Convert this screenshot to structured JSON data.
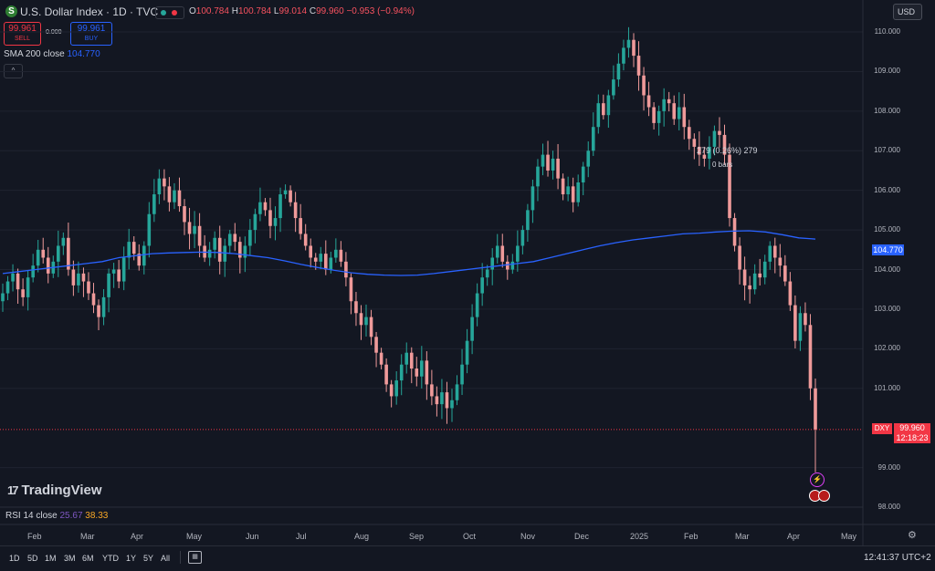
{
  "header": {
    "symbol_icon": "S",
    "title": "U.S. Dollar Index · 1D · TVC",
    "ohlc": {
      "o_label": "O",
      "o": "100.784",
      "h_label": "H",
      "h": "100.784",
      "l_label": "L",
      "l": "99.014",
      "c_label": "C",
      "c": "99.960",
      "change": "−0.953 (−0.94%)"
    },
    "currency": "USD"
  },
  "trade": {
    "sell_price": "99.961",
    "sell_label": "SELL",
    "spread": "0.000",
    "buy_price": "99.961",
    "buy_label": "BUY"
  },
  "indicator": {
    "sma_label": "SMA 200 close",
    "sma_value": "104.770",
    "collapse_icon": "^"
  },
  "chart_data": {
    "type": "candlestick",
    "y_ticks": [
      "110.000",
      "109.000",
      "108.000",
      "107.000",
      "106.000",
      "105.000",
      "104.000",
      "103.000",
      "102.000",
      "101.000",
      "99.000",
      "98.000"
    ],
    "x_ticks": [
      "Feb",
      "Mar",
      "Apr",
      "May",
      "Jun",
      "Jul",
      "Aug",
      "Sep",
      "Oct",
      "Nov",
      "Dec",
      "2025",
      "Feb",
      "Mar",
      "Apr",
      "May"
    ],
    "ylim": [
      98,
      110.3
    ],
    "last_price": "99.960",
    "countdown": "12:18:23",
    "sma_tag": "104.770",
    "symbol_tag": "DXY",
    "close_series": [
      103.4,
      103.7,
      103.9,
      103.5,
      103.3,
      103.8,
      104.1,
      104.5,
      104.3,
      103.9,
      104.2,
      104.6,
      104.8,
      104.0,
      103.6,
      103.9,
      103.7,
      103.4,
      103.1,
      102.8,
      103.3,
      103.9,
      104.0,
      103.7,
      104.3,
      104.7,
      104.4,
      104.1,
      104.6,
      105.4,
      105.9,
      106.3,
      106.1,
      105.7,
      106.0,
      105.6,
      105.2,
      104.9,
      105.1,
      104.6,
      104.3,
      104.5,
      104.8,
      104.2,
      104.6,
      104.9,
      104.7,
      104.3,
      104.6,
      105.0,
      105.4,
      105.7,
      105.5,
      105.1,
      105.3,
      105.9,
      106.0,
      105.7,
      105.3,
      104.9,
      104.6,
      104.3,
      104.2,
      104.4,
      104.0,
      104.3,
      104.5,
      104.2,
      103.8,
      103.2,
      102.9,
      102.6,
      102.8,
      102.3,
      101.9,
      101.6,
      101.1,
      100.8,
      101.2,
      101.6,
      101.9,
      101.5,
      101.3,
      101.7,
      101.1,
      100.8,
      100.6,
      100.9,
      100.5,
      100.7,
      101.1,
      101.6,
      102.2,
      102.8,
      103.4,
      103.8,
      104.0,
      104.3,
      104.6,
      104.2,
      104.0,
      104.2,
      104.6,
      105.0,
      105.5,
      106.1,
      106.6,
      106.9,
      106.5,
      106.8,
      106.3,
      105.9,
      106.1,
      105.7,
      106.2,
      106.6,
      107.0,
      107.6,
      108.2,
      107.9,
      108.4,
      108.8,
      109.2,
      109.6,
      109.8,
      109.4,
      108.9,
      108.4,
      108.1,
      107.7,
      108.0,
      108.3,
      108.2,
      107.8,
      108.1,
      107.6,
      107.3,
      107.1,
      106.9,
      106.8,
      107.1,
      107.5,
      107.4,
      106.9,
      105.3,
      104.6,
      104.0,
      103.6,
      103.5,
      103.9,
      103.8,
      104.2,
      104.6,
      104.3,
      104.1,
      103.7,
      103.1,
      102.2,
      102.9,
      102.6,
      101.0,
      99.96
    ],
    "sma_series": [
      103.9,
      103.95,
      104.0,
      104.05,
      104.1,
      104.15,
      104.2,
      104.3,
      104.35,
      104.4,
      104.42,
      104.43,
      104.44,
      104.43,
      104.4,
      104.35,
      104.3,
      104.22,
      104.13,
      104.05,
      103.98,
      103.92,
      103.88,
      103.86,
      103.85,
      103.86,
      103.9,
      103.95,
      104.0,
      104.05,
      104.1,
      104.15,
      104.2,
      104.3,
      104.4,
      104.5,
      104.6,
      104.68,
      104.75,
      104.8,
      104.85,
      104.9,
      104.92,
      104.95,
      104.97,
      104.98,
      104.95,
      104.88,
      104.8,
      104.77
    ]
  },
  "annotations": {
    "fib_label": "279 (0.26%) 279",
    "bars_label": "0 bars"
  },
  "branding": {
    "logo_text": "TradingView"
  },
  "rsi": {
    "label": "RSI 14 close",
    "value1": "25.67",
    "value2": "38.33"
  },
  "x_axis": {
    "labels": [
      "Feb",
      "Mar",
      "Apr",
      "May",
      "Jun",
      "Jul",
      "Aug",
      "Sep",
      "Oct",
      "Nov",
      "Dec",
      "2025",
      "Feb",
      "Mar",
      "Apr",
      "May"
    ]
  },
  "toolbar": {
    "ranges": [
      "1D",
      "5D",
      "1M",
      "3M",
      "6M",
      "YTD",
      "1Y",
      "5Y",
      "All"
    ],
    "clock": "12:41:37 UTC+2"
  },
  "colors": {
    "background": "#131722",
    "up": "#26a69a",
    "down": "#ef9a9a",
    "sma": "#2962ff",
    "last_price": "#f23645"
  },
  "icons": {
    "calendar": "calendar-range-icon",
    "settings": "gear-icon",
    "event": "lightning-event-icon",
    "flags": "us-flag-icon"
  }
}
